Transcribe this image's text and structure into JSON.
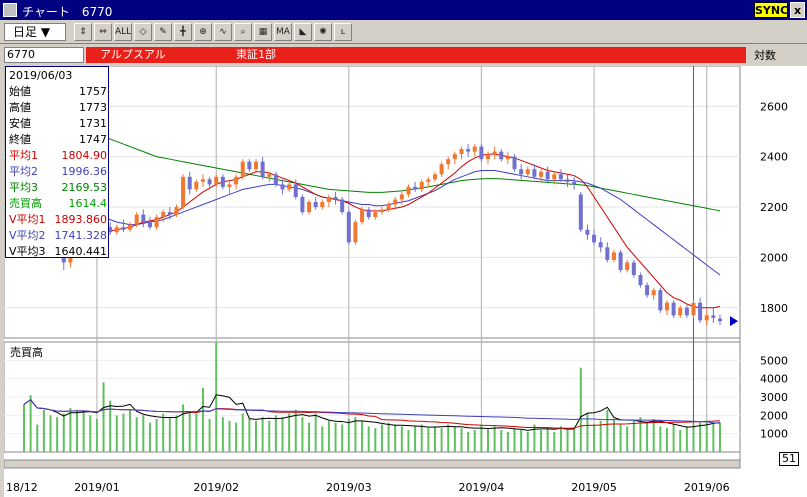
{
  "window": {
    "title": "チャート　6770",
    "sync_label": "SYNC",
    "close_label": "x"
  },
  "toolbar": {
    "period_label": "日足 ▼",
    "buttons": [
      "candle-icon",
      "candle-shift-icon",
      "all-icon",
      "3d-icon",
      "pen-icon",
      "cross-icon",
      "arrow-cross-icon",
      "wave-icon",
      "zoom-icon",
      "grid-icon",
      "ma-icon",
      "trend-icon",
      "light-icon",
      "log-icon"
    ]
  },
  "stock": {
    "code": "6770",
    "name": "アルプスアル",
    "market": "東証1部",
    "scale_label": "対数"
  },
  "info_box": {
    "date": "2019/06/03",
    "rows": [
      {
        "label": "始値",
        "value": "1757",
        "color": "#000000"
      },
      {
        "label": "高値",
        "value": "1773",
        "color": "#000000"
      },
      {
        "label": "安値",
        "value": "1731",
        "color": "#000000"
      },
      {
        "label": "終値",
        "value": "1747",
        "color": "#000000"
      },
      {
        "label": "平均1",
        "value": "1804.90",
        "color": "#d00000"
      },
      {
        "label": "平均2",
        "value": "1996.36",
        "color": "#4040c0"
      },
      {
        "label": "平均3",
        "value": "2169.53",
        "color": "#008000"
      },
      {
        "label": "売買高",
        "value": "1614.4",
        "color": "#00a000"
      },
      {
        "label": "V平均1",
        "value": "1893.860",
        "color": "#d00000"
      },
      {
        "label": "V平均2",
        "value": "1741.328",
        "color": "#4040c0"
      },
      {
        "label": "V平均3",
        "value": "1640.441",
        "color": "#000000"
      }
    ]
  },
  "volume_panel": {
    "label": "売買高",
    "page_indicator": "51"
  },
  "chart_data": {
    "type": "candlestick",
    "price_axis": {
      "ticks": [
        2600,
        2400,
        2200,
        2000,
        1800
      ],
      "min": 1680,
      "max": 2760
    },
    "volume_axis": {
      "ticks": [
        5000,
        4000,
        3000,
        2000,
        1000
      ],
      "min": 0,
      "max": 6000
    },
    "x_labels": [
      "18/12",
      "2019/01",
      "2019/02",
      "2019/03",
      "2019/04",
      "2019/05",
      "2019/06"
    ],
    "x_label_days": [
      0,
      11,
      29,
      49,
      69,
      86,
      103
    ],
    "month_lines": [
      11,
      29,
      49,
      69,
      86,
      103
    ],
    "cursor_day": 101,
    "colors": {
      "up": "#f07830",
      "down": "#7070d0",
      "ma1": "#d00000",
      "ma2": "#4040c0",
      "ma3": "#008000",
      "vol": "#60c060",
      "vma1": "#d00000",
      "vma2": "#4040c0",
      "vma3": "#000000"
    },
    "candles": [
      [
        2300,
        2320,
        2200,
        2230
      ],
      [
        2230,
        2260,
        2190,
        2240
      ],
      [
        2240,
        2250,
        2150,
        2180
      ],
      [
        2180,
        2200,
        2080,
        2100
      ],
      [
        2100,
        2130,
        2040,
        2060
      ],
      [
        2060,
        2080,
        2000,
        2020
      ],
      [
        2020,
        2050,
        1950,
        1980
      ],
      [
        1980,
        2120,
        1960,
        2100
      ],
      [
        2100,
        2180,
        2090,
        2160
      ],
      [
        2160,
        2200,
        2120,
        2140
      ],
      [
        2140,
        2160,
        2080,
        2100
      ],
      [
        2100,
        2120,
        2060,
        2080
      ],
      [
        2080,
        2130,
        2070,
        2120
      ],
      [
        2120,
        2140,
        2090,
        2100
      ],
      [
        2100,
        2130,
        2090,
        2120
      ],
      [
        2120,
        2150,
        2100,
        2110
      ],
      [
        2110,
        2140,
        2100,
        2130
      ],
      [
        2130,
        2180,
        2120,
        2170
      ],
      [
        2170,
        2190,
        2120,
        2140
      ],
      [
        2140,
        2160,
        2110,
        2120
      ],
      [
        2120,
        2170,
        2110,
        2160
      ],
      [
        2160,
        2190,
        2140,
        2180
      ],
      [
        2180,
        2200,
        2150,
        2170
      ],
      [
        2170,
        2210,
        2160,
        2200
      ],
      [
        2200,
        2330,
        2190,
        2320
      ],
      [
        2320,
        2340,
        2250,
        2270
      ],
      [
        2270,
        2310,
        2260,
        2300
      ],
      [
        2300,
        2330,
        2280,
        2310
      ],
      [
        2310,
        2320,
        2270,
        2290
      ],
      [
        2290,
        2330,
        2280,
        2320
      ],
      [
        2320,
        2330,
        2270,
        2280
      ],
      [
        2280,
        2300,
        2250,
        2290
      ],
      [
        2290,
        2330,
        2270,
        2320
      ],
      [
        2320,
        2390,
        2310,
        2380
      ],
      [
        2380,
        2390,
        2340,
        2350
      ],
      [
        2350,
        2390,
        2340,
        2380
      ],
      [
        2380,
        2400,
        2310,
        2320
      ],
      [
        2320,
        2340,
        2300,
        2330
      ],
      [
        2330,
        2340,
        2280,
        2290
      ],
      [
        2290,
        2310,
        2250,
        2270
      ],
      [
        2270,
        2300,
        2260,
        2290
      ],
      [
        2290,
        2310,
        2230,
        2240
      ],
      [
        2240,
        2250,
        2170,
        2180
      ],
      [
        2180,
        2230,
        2170,
        2220
      ],
      [
        2220,
        2240,
        2190,
        2200
      ],
      [
        2200,
        2230,
        2190,
        2220
      ],
      [
        2220,
        2250,
        2200,
        2240
      ],
      [
        2240,
        2260,
        2210,
        2230
      ],
      [
        2230,
        2240,
        2170,
        2180
      ],
      [
        2180,
        2190,
        2050,
        2060
      ],
      [
        2060,
        2150,
        2050,
        2140
      ],
      [
        2140,
        2200,
        2130,
        2190
      ],
      [
        2190,
        2200,
        2150,
        2160
      ],
      [
        2160,
        2190,
        2150,
        2180
      ],
      [
        2180,
        2200,
        2170,
        2190
      ],
      [
        2190,
        2220,
        2180,
        2210
      ],
      [
        2210,
        2240,
        2190,
        2230
      ],
      [
        2230,
        2260,
        2210,
        2250
      ],
      [
        2250,
        2290,
        2240,
        2280
      ],
      [
        2280,
        2300,
        2260,
        2270
      ],
      [
        2270,
        2310,
        2260,
        2300
      ],
      [
        2300,
        2320,
        2280,
        2310
      ],
      [
        2310,
        2340,
        2300,
        2330
      ],
      [
        2330,
        2380,
        2320,
        2370
      ],
      [
        2370,
        2400,
        2350,
        2390
      ],
      [
        2390,
        2420,
        2370,
        2410
      ],
      [
        2410,
        2440,
        2390,
        2430
      ],
      [
        2430,
        2450,
        2400,
        2420
      ],
      [
        2420,
        2450,
        2400,
        2440
      ],
      [
        2440,
        2450,
        2380,
        2390
      ],
      [
        2390,
        2420,
        2370,
        2410
      ],
      [
        2410,
        2440,
        2390,
        2420
      ],
      [
        2420,
        2430,
        2380,
        2390
      ],
      [
        2390,
        2420,
        2370,
        2400
      ],
      [
        2400,
        2410,
        2340,
        2350
      ],
      [
        2350,
        2370,
        2310,
        2330
      ],
      [
        2330,
        2360,
        2320,
        2350
      ],
      [
        2350,
        2370,
        2310,
        2320
      ],
      [
        2320,
        2350,
        2300,
        2340
      ],
      [
        2340,
        2360,
        2300,
        2310
      ],
      [
        2310,
        2340,
        2290,
        2330
      ],
      [
        2330,
        2350,
        2300,
        2310
      ],
      [
        2310,
        2330,
        2280,
        2300
      ],
      [
        2300,
        2320,
        2270,
        2290
      ],
      [
        2250,
        2260,
        2100,
        2110
      ],
      [
        2110,
        2130,
        2070,
        2090
      ],
      [
        2090,
        2110,
        2050,
        2060
      ],
      [
        2060,
        2080,
        2020,
        2040
      ],
      [
        2040,
        2060,
        1980,
        1990
      ],
      [
        1990,
        2030,
        1980,
        2020
      ],
      [
        2020,
        2030,
        1940,
        1950
      ],
      [
        1950,
        1990,
        1940,
        1980
      ],
      [
        1980,
        1990,
        1920,
        1930
      ],
      [
        1930,
        1940,
        1880,
        1890
      ],
      [
        1890,
        1900,
        1840,
        1850
      ],
      [
        1850,
        1880,
        1830,
        1870
      ],
      [
        1870,
        1880,
        1780,
        1790
      ],
      [
        1790,
        1830,
        1770,
        1820
      ],
      [
        1820,
        1830,
        1760,
        1770
      ],
      [
        1770,
        1810,
        1760,
        1800
      ],
      [
        1800,
        1810,
        1760,
        1770
      ],
      [
        1770,
        1830,
        1760,
        1820
      ],
      [
        1820,
        1840,
        1740,
        1750
      ],
      [
        1750,
        1790,
        1730,
        1770
      ],
      [
        1770,
        1800,
        1740,
        1760
      ],
      [
        1757,
        1773,
        1731,
        1747
      ]
    ],
    "ma1": [
      2300,
      2280,
      2250,
      2200,
      2150,
      2100,
      2070,
      2060,
      2070,
      2080,
      2090,
      2095,
      2100,
      2105,
      2110,
      2115,
      2120,
      2130,
      2140,
      2145,
      2150,
      2160,
      2170,
      2180,
      2200,
      2220,
      2240,
      2260,
      2275,
      2290,
      2300,
      2305,
      2310,
      2320,
      2330,
      2340,
      2340,
      2335,
      2325,
      2315,
      2305,
      2295,
      2280,
      2265,
      2250,
      2240,
      2235,
      2230,
      2225,
      2215,
      2200,
      2190,
      2185,
      2185,
      2185,
      2190,
      2195,
      2200,
      2210,
      2225,
      2240,
      2255,
      2275,
      2295,
      2315,
      2335,
      2360,
      2380,
      2395,
      2405,
      2410,
      2410,
      2405,
      2400,
      2395,
      2385,
      2375,
      2365,
      2355,
      2345,
      2340,
      2335,
      2330,
      2325,
      2310,
      2280,
      2240,
      2200,
      2160,
      2120,
      2080,
      2040,
      2010,
      1980,
      1950,
      1920,
      1890,
      1860,
      1840,
      1830,
      1815,
      1805,
      1800,
      1800,
      1800,
      1805
    ],
    "ma2": [
      2450,
      2430,
      2410,
      2390,
      2370,
      2340,
      2310,
      2280,
      2250,
      2220,
      2200,
      2180,
      2165,
      2150,
      2140,
      2135,
      2130,
      2130,
      2135,
      2140,
      2145,
      2150,
      2160,
      2170,
      2180,
      2190,
      2200,
      2210,
      2220,
      2230,
      2240,
      2250,
      2260,
      2270,
      2275,
      2280,
      2285,
      2290,
      2290,
      2285,
      2280,
      2275,
      2270,
      2260,
      2250,
      2240,
      2235,
      2230,
      2225,
      2220,
      2215,
      2210,
      2210,
      2205,
      2205,
      2210,
      2215,
      2220,
      2225,
      2235,
      2245,
      2255,
      2265,
      2280,
      2295,
      2310,
      2320,
      2330,
      2340,
      2345,
      2345,
      2345,
      2340,
      2335,
      2330,
      2325,
      2320,
      2315,
      2310,
      2305,
      2305,
      2305,
      2305,
      2305,
      2300,
      2295,
      2285,
      2275,
      2260,
      2245,
      2230,
      2210,
      2190,
      2170,
      2150,
      2130,
      2110,
      2090,
      2070,
      2050,
      2030,
      2010,
      1990,
      1970,
      1950,
      1930
    ],
    "ma3": [
      2600,
      2590,
      2580,
      2570,
      2560,
      2550,
      2540,
      2530,
      2520,
      2510,
      2500,
      2490,
      2480,
      2470,
      2460,
      2450,
      2440,
      2430,
      2420,
      2410,
      2400,
      2395,
      2390,
      2385,
      2380,
      2375,
      2370,
      2365,
      2360,
      2355,
      2350,
      2345,
      2340,
      2335,
      2330,
      2325,
      2320,
      2315,
      2310,
      2305,
      2300,
      2295,
      2290,
      2285,
      2280,
      2275,
      2270,
      2268,
      2266,
      2264,
      2262,
      2260,
      2258,
      2258,
      2258,
      2260,
      2262,
      2264,
      2268,
      2272,
      2276,
      2280,
      2285,
      2290,
      2295,
      2300,
      2305,
      2308,
      2310,
      2312,
      2313,
      2313,
      2312,
      2310,
      2308,
      2306,
      2304,
      2302,
      2300,
      2298,
      2296,
      2294,
      2292,
      2290,
      2288,
      2285,
      2280,
      2275,
      2270,
      2265,
      2260,
      2255,
      2250,
      2245,
      2240,
      2235,
      2230,
      2225,
      2220,
      2215,
      2210,
      2205,
      2200,
      2195,
      2190,
      2185
    ],
    "volume": [
      2600,
      3100,
      1500,
      2300,
      2000,
      1900,
      2100,
      2400,
      2300,
      2200,
      2000,
      1800,
      3800,
      2800,
      2000,
      2100,
      2300,
      1900,
      2000,
      1600,
      1800,
      2100,
      1900,
      2000,
      2600,
      2200,
      2100,
      3500,
      1800,
      6000,
      1900,
      1700,
      1600,
      2100,
      1800,
      1700,
      1900,
      1700,
      2000,
      1900,
      2100,
      2300,
      1900,
      1600,
      2100,
      1400,
      1700,
      1600,
      1500,
      1800,
      1900,
      1700,
      1400,
      1300,
      1500,
      1600,
      1500,
      1400,
      1200,
      1400,
      1500,
      1300,
      1400,
      1300,
      1500,
      1400,
      1300,
      1100,
      1200,
      1500,
      1300,
      1400,
      1200,
      1100,
      1300,
      1200,
      1100,
      1500,
      1200,
      1300,
      1100,
      1400,
      1200,
      1300,
      4600,
      2100,
      1500,
      1700,
      2300,
      1800,
      1500,
      1400,
      1700,
      1900,
      1600,
      1800,
      1400,
      1300,
      1500,
      1200,
      1400,
      1500,
      1600,
      1700,
      1600,
      1614
    ]
  }
}
